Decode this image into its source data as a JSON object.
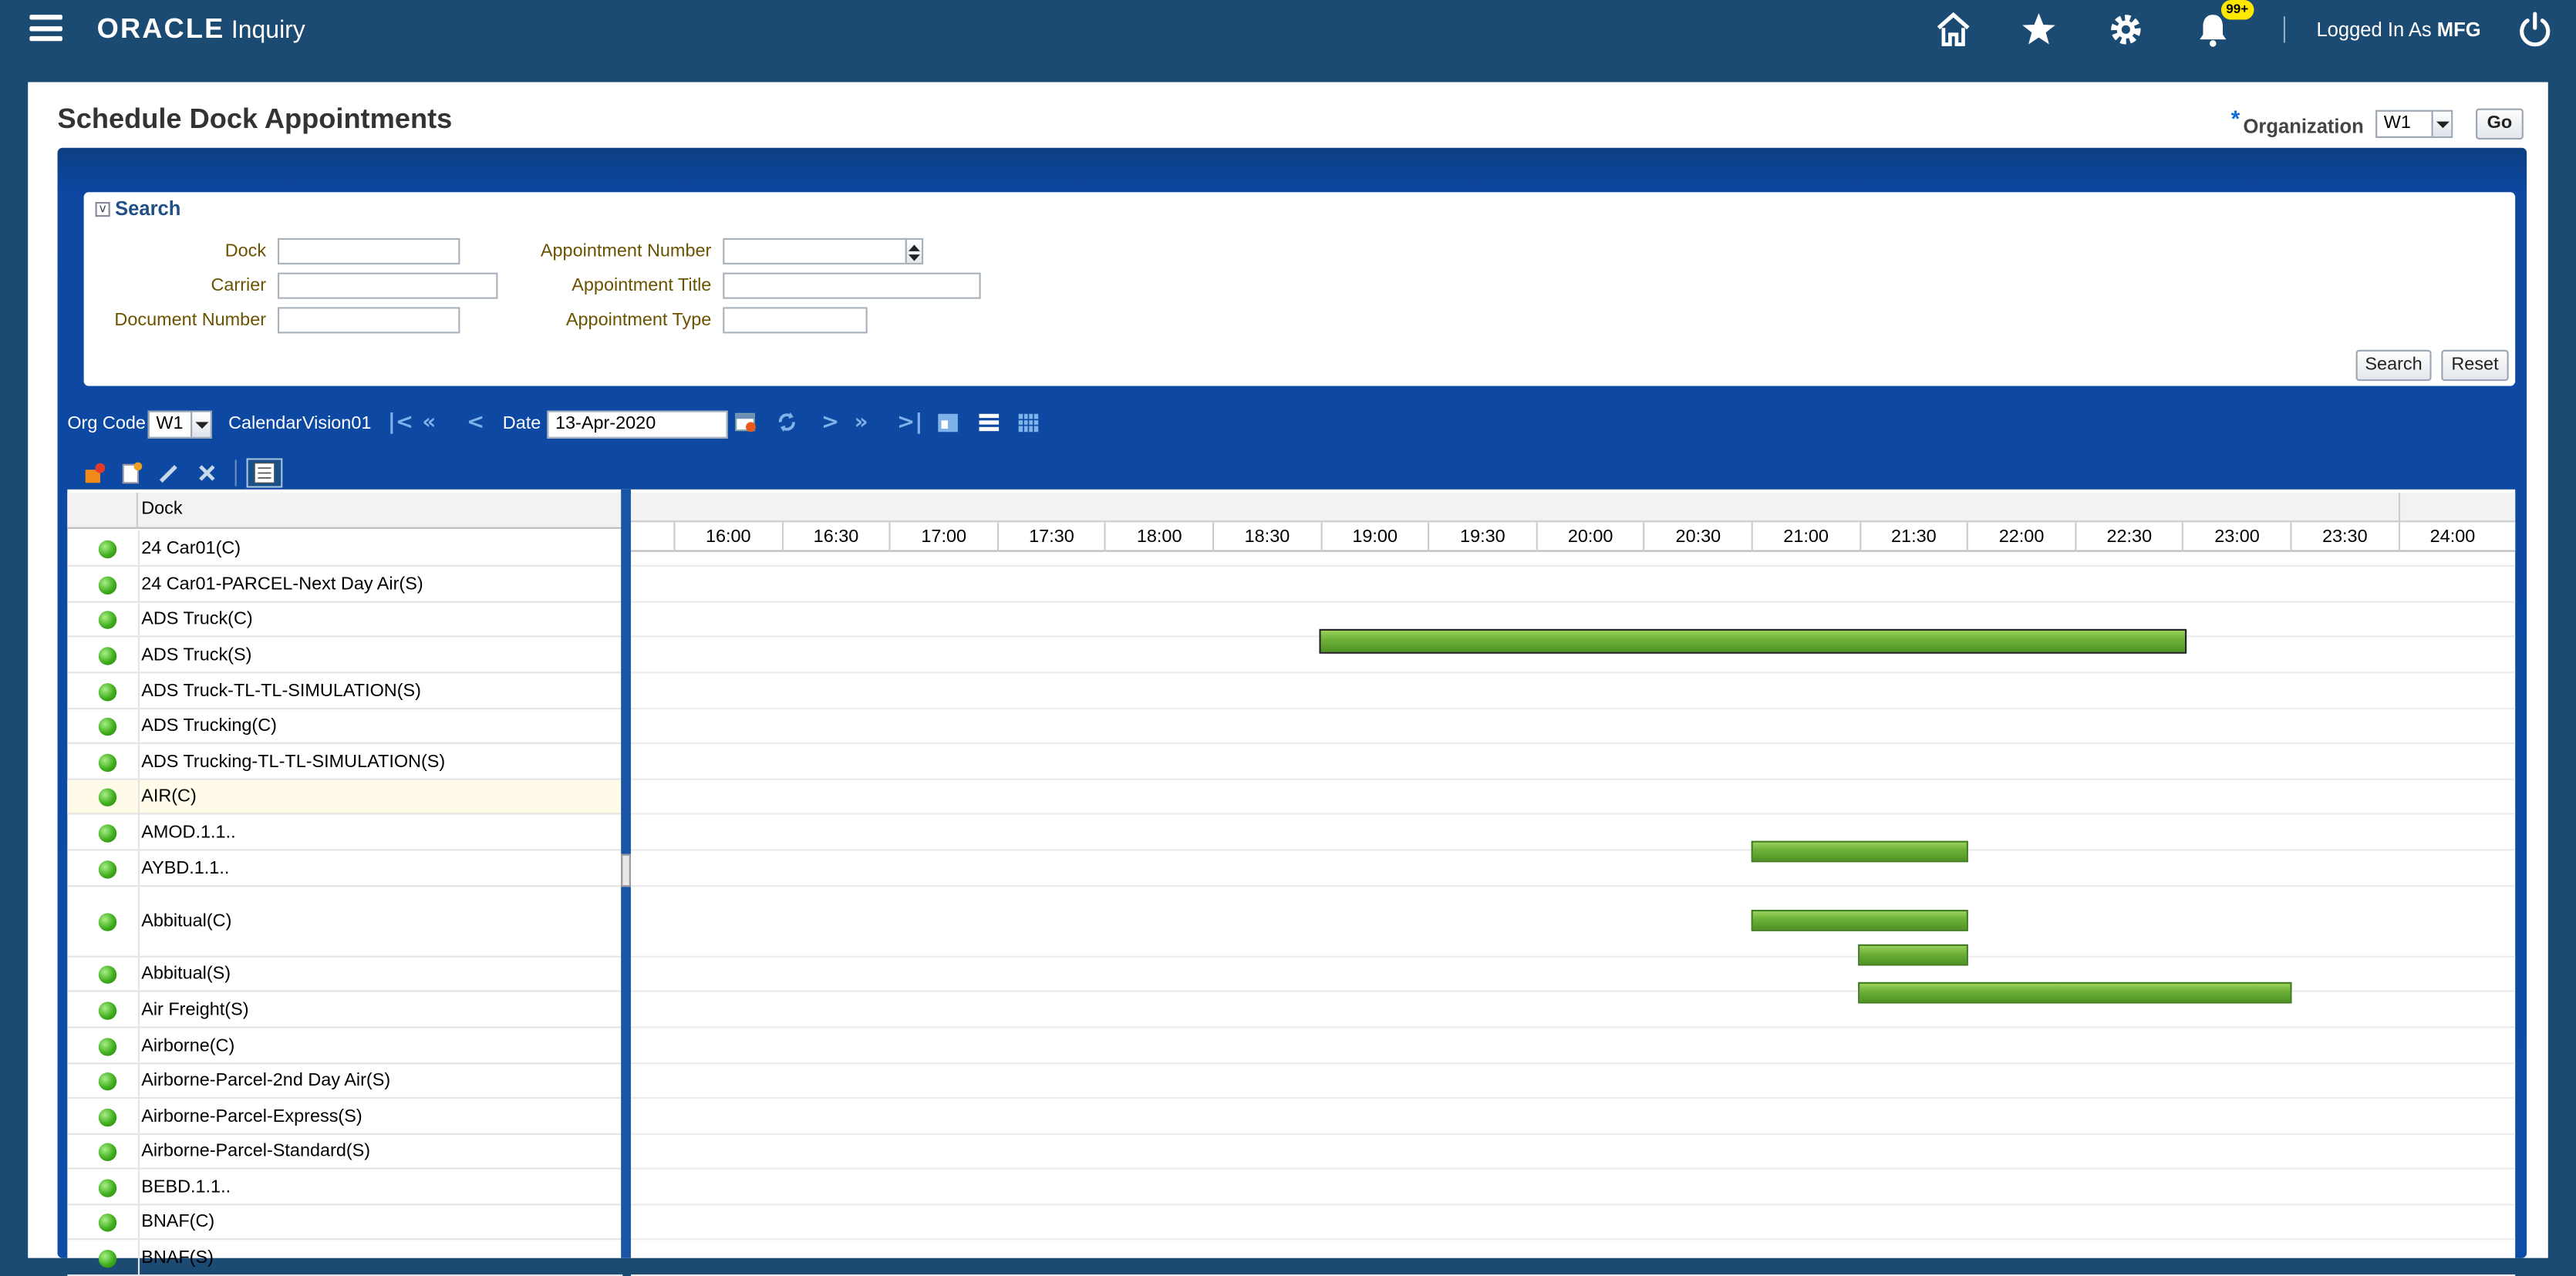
{
  "header": {
    "app": "ORACLE",
    "module": "Inquiry",
    "logged_prefix": "Logged In As",
    "user": "MFG",
    "badge": "99+"
  },
  "icons": {
    "menu": "hamburger-icon",
    "home": "home-icon",
    "fav": "star-icon",
    "settings": "gear-icon",
    "notif": "bell-icon",
    "power": "power-icon"
  },
  "page": {
    "title": "Schedule Dock Appointments",
    "org_label": "Organization",
    "org_value": "W1",
    "go": "Go"
  },
  "search": {
    "title": "Search",
    "fields": {
      "dock": "Dock",
      "carrier": "Carrier",
      "doc_num": "Document Number",
      "appt_num": "Appointment Number",
      "appt_title": "Appointment Title",
      "appt_type": "Appointment Type"
    },
    "search_btn": "Search",
    "reset_btn": "Reset"
  },
  "toolbar": {
    "org_code_label": "Org Code",
    "org_code": "W1",
    "calendar_label": "Calendar",
    "calendar": "Vision01",
    "date_label": "Date",
    "date": "13-Apr-2020"
  },
  "grid": {
    "dock_header": "Dock",
    "times": [
      "16:00",
      "16:30",
      "17:00",
      "17:30",
      "18:00",
      "18:30",
      "19:00",
      "19:30",
      "20:00",
      "20:30",
      "21:00",
      "21:30",
      "22:00",
      "22:30",
      "23:00",
      "23:30",
      "24:00"
    ],
    "docks": [
      "24 Car01(C)",
      "24 Car01-PARCEL-Next Day Air(S)",
      "ADS Truck(C)",
      "ADS Truck(S)",
      "ADS Truck-TL-TL-SIMULATION(S)",
      "ADS Trucking(C)",
      "ADS Trucking-TL-TL-SIMULATION(S)",
      "AIR(C)",
      "AMOD.1.1..",
      "AYBD.1.1..",
      "Abbitual(C)",
      "Abbitual(S)",
      "Air Freight(S)",
      "Airborne(C)",
      "Airborne-Parcel-2nd Day Air(S)",
      "Airborne-Parcel-Express(S)",
      "Airborne-Parcel-Standard(S)",
      "BEBD.1.1..",
      "BNAF(C)",
      "BNAF(S)"
    ]
  }
}
